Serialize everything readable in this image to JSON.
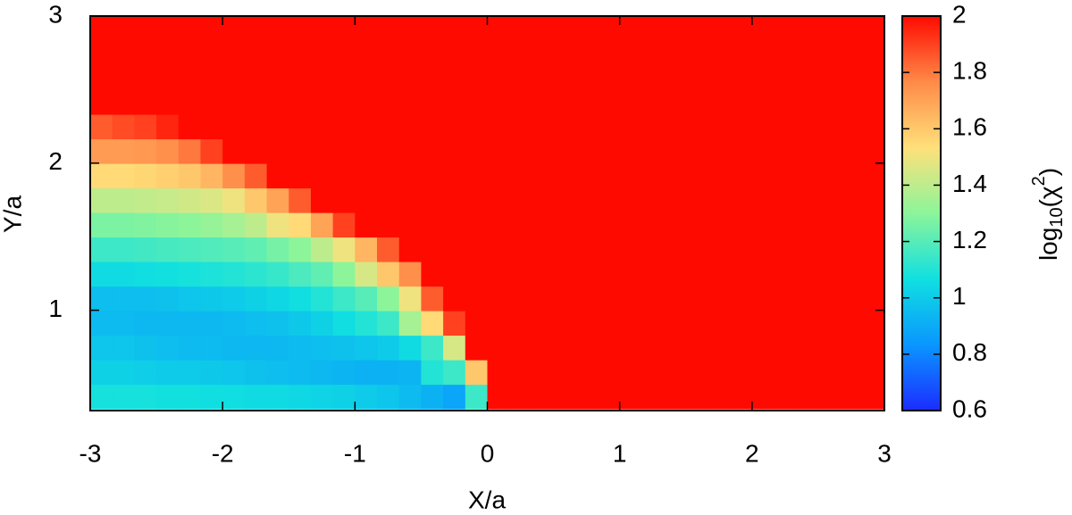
{
  "chart_data": {
    "type": "heatmap",
    "x_label": "X/a",
    "y_label": "Y/a",
    "colorbar_label": [
      "log",
      "10",
      "(χ",
      "2",
      ")"
    ],
    "xlim": [
      -3,
      3
    ],
    "xticks": [
      -3,
      -2,
      -1,
      0,
      1,
      2,
      3
    ],
    "ylim": [
      0.33,
      3
    ],
    "yticks": [
      1,
      2,
      3
    ],
    "clim": [
      0.6,
      2
    ],
    "cticks": [
      0.6,
      0.8,
      1,
      1.2,
      1.4,
      1.6,
      1.8,
      2
    ],
    "colormap": [
      "#1c2cff",
      "#0a96ff",
      "#10e0e0",
      "#8cf59a",
      "#ffe07a",
      "#ff8a48",
      "#ff0a00"
    ],
    "z": [
      [
        1.08,
        1.08,
        1.08,
        1.07,
        1.07,
        1.06,
        1.06,
        1.05,
        1.05,
        1.04,
        1.03,
        1.02,
        1.0,
        0.98,
        0.95,
        0.92,
        0.88,
        1.15,
        2,
        2,
        2,
        2,
        2,
        2,
        2,
        2,
        2,
        2,
        2,
        2,
        2,
        2,
        2,
        2,
        2,
        2
      ],
      [
        1.02,
        1.02,
        1.01,
        1.0,
        1.0,
        0.99,
        0.98,
        0.97,
        0.96,
        0.95,
        0.94,
        0.93,
        0.92,
        0.92,
        0.93,
        1.1,
        1.15,
        1.6,
        2,
        2,
        2,
        2,
        2,
        2,
        2,
        2,
        2,
        2,
        2,
        2,
        2,
        2,
        2,
        2,
        2,
        2
      ],
      [
        0.98,
        0.98,
        0.97,
        0.96,
        0.95,
        0.95,
        0.94,
        0.94,
        0.94,
        0.95,
        0.96,
        0.97,
        0.98,
        1.0,
        1.05,
        1.15,
        1.45,
        2,
        2,
        2,
        2,
        2,
        2,
        2,
        2,
        2,
        2,
        2,
        2,
        2,
        2,
        2,
        2,
        2,
        2,
        2
      ],
      [
        0.95,
        0.95,
        0.94,
        0.94,
        0.94,
        0.94,
        0.95,
        0.96,
        0.97,
        0.99,
        1.02,
        1.06,
        1.1,
        1.15,
        1.35,
        1.55,
        1.9,
        2,
        2,
        2,
        2,
        2,
        2,
        2,
        2,
        2,
        2,
        2,
        2,
        2,
        2,
        2,
        2,
        2,
        2,
        2
      ],
      [
        0.96,
        0.96,
        0.96,
        0.97,
        0.98,
        0.99,
        1.0,
        1.02,
        1.04,
        1.06,
        1.1,
        1.15,
        1.2,
        1.3,
        1.5,
        1.85,
        2,
        2,
        2,
        2,
        2,
        2,
        2,
        2,
        2,
        2,
        2,
        2,
        2,
        2,
        2,
        2,
        2,
        2,
        2,
        2
      ],
      [
        1.05,
        1.05,
        1.06,
        1.07,
        1.08,
        1.09,
        1.1,
        1.12,
        1.14,
        1.18,
        1.22,
        1.3,
        1.45,
        1.6,
        1.75,
        2,
        2,
        2,
        2,
        2,
        2,
        2,
        2,
        2,
        2,
        2,
        2,
        2,
        2,
        2,
        2,
        2,
        2,
        2,
        2,
        2
      ],
      [
        1.15,
        1.15,
        1.16,
        1.17,
        1.18,
        1.19,
        1.2,
        1.22,
        1.26,
        1.3,
        1.4,
        1.5,
        1.65,
        1.85,
        2,
        2,
        2,
        2,
        2,
        2,
        2,
        2,
        2,
        2,
        2,
        2,
        2,
        2,
        2,
        2,
        2,
        2,
        2,
        2,
        2,
        2
      ],
      [
        1.27,
        1.27,
        1.28,
        1.29,
        1.3,
        1.32,
        1.35,
        1.4,
        1.5,
        1.55,
        1.7,
        1.9,
        2,
        2,
        2,
        2,
        2,
        2,
        2,
        2,
        2,
        2,
        2,
        2,
        2,
        2,
        2,
        2,
        2,
        2,
        2,
        2,
        2,
        2,
        2,
        2
      ],
      [
        1.4,
        1.4,
        1.41,
        1.42,
        1.44,
        1.46,
        1.5,
        1.6,
        1.7,
        1.85,
        2,
        2,
        2,
        2,
        2,
        2,
        2,
        2,
        2,
        2,
        2,
        2,
        2,
        2,
        2,
        2,
        2,
        2,
        2,
        2,
        2,
        2,
        2,
        2,
        2,
        2
      ],
      [
        1.55,
        1.55,
        1.56,
        1.58,
        1.6,
        1.65,
        1.75,
        1.85,
        2,
        2,
        2,
        2,
        2,
        2,
        2,
        2,
        2,
        2,
        2,
        2,
        2,
        2,
        2,
        2,
        2,
        2,
        2,
        2,
        2,
        2,
        2,
        2,
        2,
        2,
        2,
        2
      ],
      [
        1.72,
        1.72,
        1.73,
        1.75,
        1.8,
        1.9,
        2,
        2,
        2,
        2,
        2,
        2,
        2,
        2,
        2,
        2,
        2,
        2,
        2,
        2,
        2,
        2,
        2,
        2,
        2,
        2,
        2,
        2,
        2,
        2,
        2,
        2,
        2,
        2,
        2,
        2
      ],
      [
        1.85,
        1.88,
        1.9,
        1.95,
        2,
        2,
        2,
        2,
        2,
        2,
        2,
        2,
        2,
        2,
        2,
        2,
        2,
        2,
        2,
        2,
        2,
        2,
        2,
        2,
        2,
        2,
        2,
        2,
        2,
        2,
        2,
        2,
        2,
        2,
        2,
        2
      ],
      [
        2,
        2,
        2,
        2,
        2,
        2,
        2,
        2,
        2,
        2,
        2,
        2,
        2,
        2,
        2,
        2,
        2,
        2,
        2,
        2,
        2,
        2,
        2,
        2,
        2,
        2,
        2,
        2,
        2,
        2,
        2,
        2,
        2,
        2,
        2,
        2
      ],
      [
        2,
        2,
        2,
        2,
        2,
        2,
        2,
        2,
        2,
        2,
        2,
        2,
        2,
        2,
        2,
        2,
        2,
        2,
        2,
        2,
        2,
        2,
        2,
        2,
        2,
        2,
        2,
        2,
        2,
        2,
        2,
        2,
        2,
        2,
        2,
        2
      ],
      [
        2,
        2,
        2,
        2,
        2,
        2,
        2,
        2,
        2,
        2,
        2,
        2,
        2,
        2,
        2,
        2,
        2,
        2,
        2,
        2,
        2,
        2,
        2,
        2,
        2,
        2,
        2,
        2,
        2,
        2,
        2,
        2,
        2,
        2,
        2,
        2
      ],
      [
        2,
        2,
        2,
        2,
        2,
        2,
        2,
        2,
        2,
        2,
        2,
        2,
        2,
        2,
        2,
        2,
        2,
        2,
        2,
        2,
        2,
        2,
        2,
        2,
        2,
        2,
        2,
        2,
        2,
        2,
        2,
        2,
        2,
        2,
        2,
        2
      ]
    ]
  }
}
